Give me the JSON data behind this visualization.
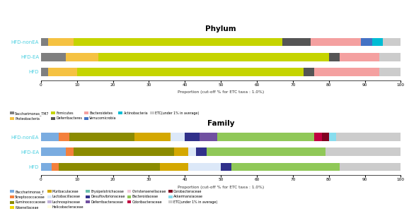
{
  "phylum_groups": [
    "HFD",
    "HFD-EA",
    "HFD-nonEA"
  ],
  "phylum_taxa": [
    "Saccharimonas_TM7",
    "Proteobacteria",
    "Firmicutes",
    "Deferribacteres",
    "Bacteroidetes",
    "Verrucomicrobia",
    "Actinobacteria",
    "ETC(under 1% in average)"
  ],
  "phylum_colors": [
    "#7f7f7f",
    "#f5c242",
    "#c5d400",
    "#555555",
    "#f4a0a0",
    "#4472c4",
    "#00bcd4",
    "#cccccc"
  ],
  "phylum_data": [
    [
      2,
      8,
      63,
      3,
      18,
      0,
      0,
      6
    ],
    [
      7,
      9,
      64,
      3,
      11,
      0,
      0,
      6
    ],
    [
      2,
      7,
      58,
      8,
      14,
      3,
      3,
      5
    ]
  ],
  "family_groups": [
    "HFD",
    "HFD-EA",
    "HFD-nonEA"
  ],
  "family_taxa": [
    "Baccharimonas_f",
    "Streptococcaceae",
    "Ruminococcaceae",
    "Rikenellaceae",
    "Muribaculaceae",
    "Lactobacillaceae",
    "Lachnospiraceae",
    "Helicobacteraceae",
    "Erysipelotrichaceae",
    "Desulfovibrionaceae",
    "Deferribacteraceae",
    "Christensenellaceae",
    "Bacteroidaceae",
    "Odoribacteraceae",
    "Corobacteraceae",
    "Akkermansiaceae",
    "ETC(under 1% in average)"
  ],
  "family_colors": [
    "#7aace0",
    "#f4803c",
    "#8b8b00",
    "#f0d800",
    "#d4a800",
    "#dce8f8",
    "#c0b0d8",
    "#fffde0",
    "#6abfad",
    "#30308a",
    "#7050a0",
    "#f0c8d8",
    "#90c858",
    "#c00040",
    "#800020",
    "#88ddee",
    "#cccccc"
  ],
  "family_data": [
    [
      3,
      2,
      28,
      0,
      8,
      9,
      0,
      0,
      0,
      3,
      0,
      0,
      30,
      0,
      0,
      0,
      17
    ],
    [
      7,
      2,
      28,
      0,
      4,
      2,
      0,
      0,
      0,
      3,
      0,
      0,
      33,
      0,
      0,
      0,
      21
    ],
    [
      5,
      3,
      18,
      0,
      10,
      4,
      0,
      0,
      0,
      4,
      5,
      0,
      27,
      2,
      2,
      2,
      18
    ]
  ],
  "phylum_xlabel": "Proportion (cut-off % for ETC taxa : 1.0%)",
  "family_xlabel": "Proportion (cut-off % for ETC taxa : 1.0%)",
  "phylum_title": "Phylum",
  "family_title": "Family",
  "group_color": "#4dd0e1",
  "xticks": [
    0,
    10,
    20,
    30,
    40,
    50,
    60,
    70,
    80,
    90,
    100
  ]
}
